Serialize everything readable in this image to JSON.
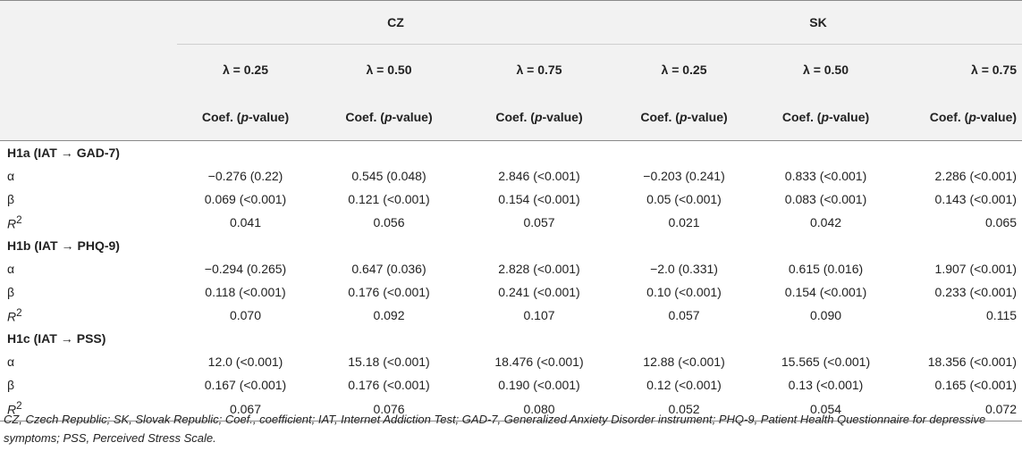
{
  "header": {
    "countries": [
      "CZ",
      "SK"
    ],
    "lambdas": [
      "λ = 0.25",
      "λ = 0.50",
      "λ = 0.75",
      "λ = 0.25",
      "λ = 0.50",
      "λ = 0.75"
    ],
    "coef_prefix": "Coef. (",
    "coef_italic": "p",
    "coef_suffix": "-value)"
  },
  "sections": [
    {
      "pre": "H1a (IAT",
      "arrow": "→",
      "post": "GAD-7)",
      "rows": [
        {
          "label": "α",
          "label_italic": "",
          "label_sup": "",
          "values": [
            "−0.276 (0.22)",
            "0.545 (0.048)",
            "2.846 (<0.001)",
            "−0.203 (0.241)",
            "0.833 (<0.001)",
            "2.286 (<0.001)"
          ]
        },
        {
          "label": "β",
          "label_italic": "",
          "label_sup": "",
          "values": [
            "0.069 (<0.001)",
            "0.121 (<0.001)",
            "0.154 (<0.001)",
            "0.05 (<0.001)",
            "0.083 (<0.001)",
            "0.143 (<0.001)"
          ]
        },
        {
          "label": "",
          "label_italic": "R",
          "label_sup": "2",
          "values": [
            "0.041",
            "0.056",
            "0.057",
            "0.021",
            "0.042",
            "0.065"
          ]
        }
      ]
    },
    {
      "pre": "H1b (IAT",
      "arrow": "→",
      "post": "PHQ-9)",
      "rows": [
        {
          "label": "α",
          "label_italic": "",
          "label_sup": "",
          "values": [
            "−0.294 (0.265)",
            "0.647 (0.036)",
            "2.828 (<0.001)",
            "−2.0 (0.331)",
            "0.615 (0.016)",
            "1.907 (<0.001)"
          ]
        },
        {
          "label": "β",
          "label_italic": "",
          "label_sup": "",
          "values": [
            "0.118 (<0.001)",
            "0.176 (<0.001)",
            "0.241 (<0.001)",
            "0.10 (<0.001)",
            "0.154 (<0.001)",
            "0.233 (<0.001)"
          ]
        },
        {
          "label": "",
          "label_italic": "R",
          "label_sup": "2",
          "values": [
            "0.070",
            "0.092",
            "0.107",
            "0.057",
            "0.090",
            "0.115"
          ]
        }
      ]
    },
    {
      "pre": "H1c (IAT",
      "arrow": "→",
      "post": "PSS)",
      "rows": [
        {
          "label": "α",
          "label_italic": "",
          "label_sup": "",
          "values": [
            "12.0 (<0.001)",
            "15.18 (<0.001)",
            "18.476 (<0.001)",
            "12.88 (<0.001)",
            "15.565 (<0.001)",
            "18.356 (<0.001)"
          ]
        },
        {
          "label": "β",
          "label_italic": "",
          "label_sup": "",
          "values": [
            "0.167 (<0.001)",
            "0.176 (<0.001)",
            "0.190 (<0.001)",
            "0.12 (<0.001)",
            "0.13 (<0.001)",
            "0.165 (<0.001)"
          ]
        },
        {
          "label": "",
          "label_italic": "R",
          "label_sup": "2",
          "values": [
            "0.067",
            "0.076",
            "0.080",
            "0.052",
            "0.054",
            "0.072"
          ]
        }
      ]
    }
  ],
  "footnote": "CZ, Czech Republic; SK, Slovak Republic; Coef., coefficient; IAT, Internet Addiction Test; GAD-7, Generalized Anxiety Disorder instrument; PHQ-9, Patient Health Questionnaire for depressive symptoms; PSS, Perceived Stress Scale.",
  "colors": {
    "header_background": "#f2f2f2",
    "rule": "#8a8a8a",
    "text": "#222222"
  }
}
